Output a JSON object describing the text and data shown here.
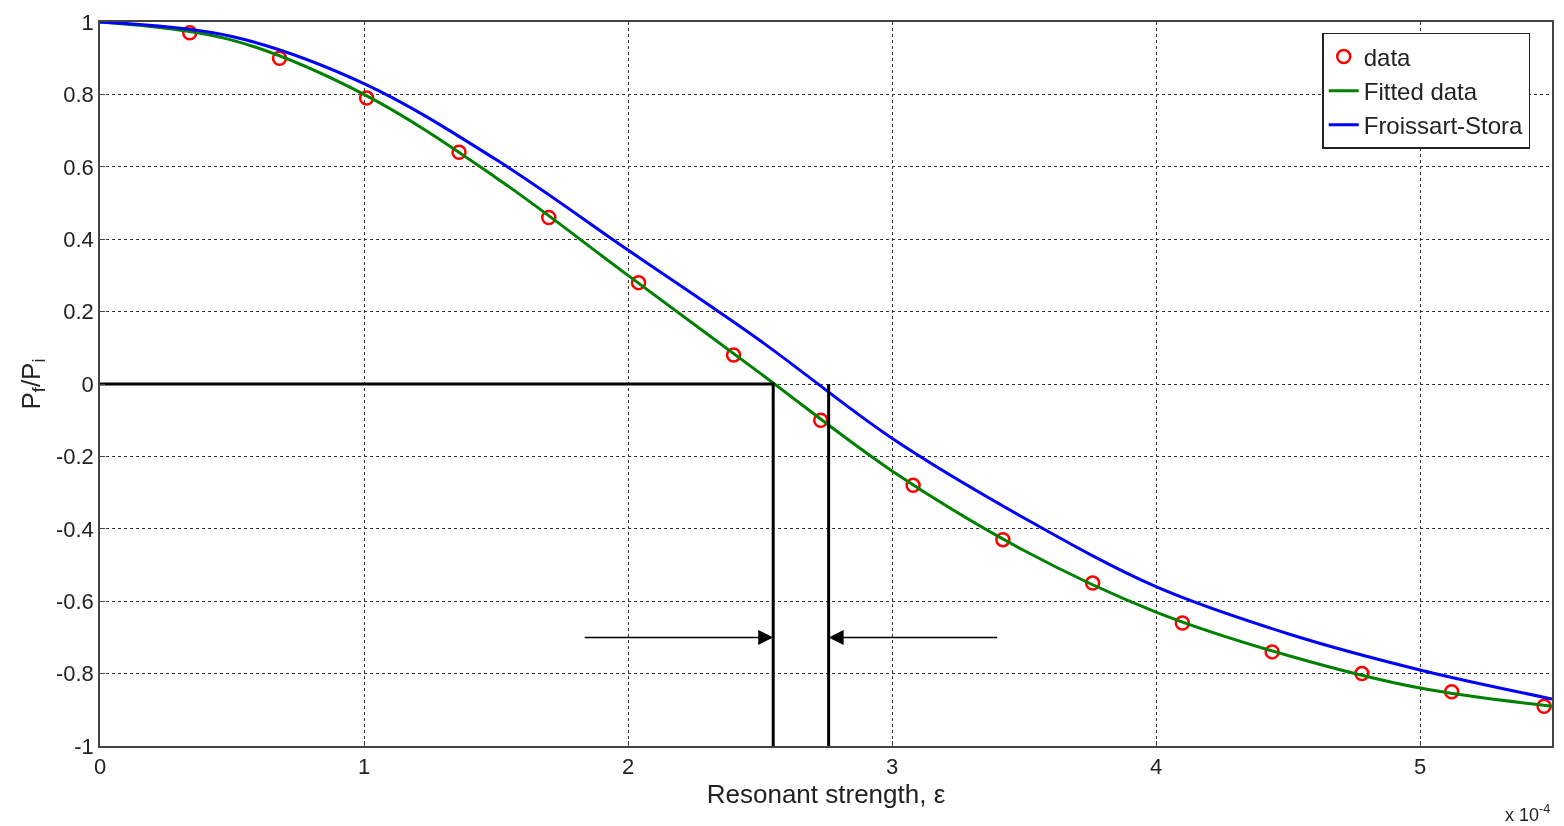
{
  "chart_data": {
    "type": "scatter",
    "xlabel": "Resonant strength, ε",
    "ylabel": "P$_{f}$/P$_{i}$",
    "xlim": [
      0,
      5.5
    ],
    "xticks": [
      0,
      1,
      2,
      3,
      4,
      5
    ],
    "ylim": [
      -1,
      1
    ],
    "yticks": [
      -1,
      -0.8,
      -0.6,
      -0.4,
      -0.2,
      0,
      0.2,
      0.4,
      0.6,
      0.8,
      1
    ],
    "grid": true,
    "legend": "top right",
    "annotations": [
      "x 10$^{-4}$"
    ],
    "series": [
      {
        "name": "data",
        "marker": "circle",
        "color": "#ff0000",
        "x": [
          0.34,
          0.68,
          1.01,
          1.36,
          1.7,
          2.04,
          2.4,
          2.73,
          3.08,
          3.42,
          3.76,
          4.1,
          4.44,
          4.78,
          5.12,
          5.47
        ],
        "values": [
          0.97,
          0.9,
          0.79,
          0.64,
          0.46,
          0.28,
          0.08,
          -0.1,
          -0.28,
          -0.43,
          -0.55,
          -0.66,
          -0.74,
          -0.8,
          -0.85,
          -0.89
        ]
      },
      {
        "name": "Fitted data",
        "type": "line",
        "marker": "none",
        "color": "#008000",
        "x": [
          0,
          0.5,
          1,
          1.5,
          2,
          2.5,
          3,
          3.5,
          4,
          4.5,
          5,
          5.5
        ],
        "values": [
          1,
          0.95,
          0.8,
          0.57,
          0.3,
          0.03,
          -0.24,
          -0.46,
          -0.63,
          -0.75,
          -0.84,
          -0.89
        ]
      },
      {
        "name": "Froissart-Stora",
        "type": "line",
        "marker": "none",
        "color": "#0000ff",
        "x": [
          0,
          0.5,
          1,
          1.5,
          2,
          2.5,
          3,
          3.5,
          4,
          4.5,
          5,
          5.5
        ],
        "values": [
          1,
          0.96,
          0.83,
          0.62,
          0.37,
          0.12,
          -0.15,
          -0.37,
          -0.56,
          -0.69,
          -0.79,
          -0.87
        ]
      },
      {
        "type": "line",
        "marker": "none",
        "color": "#000000",
        "x": [
          0,
          2.55,
          2.55
        ],
        "values": [
          0,
          0,
          -1
        ]
      },
      {
        "type": "line",
        "marker": "none",
        "color": "#000000",
        "x": [
          2.76,
          2.76
        ],
        "values": [
          0,
          -1
        ]
      }
    ]
  }
}
